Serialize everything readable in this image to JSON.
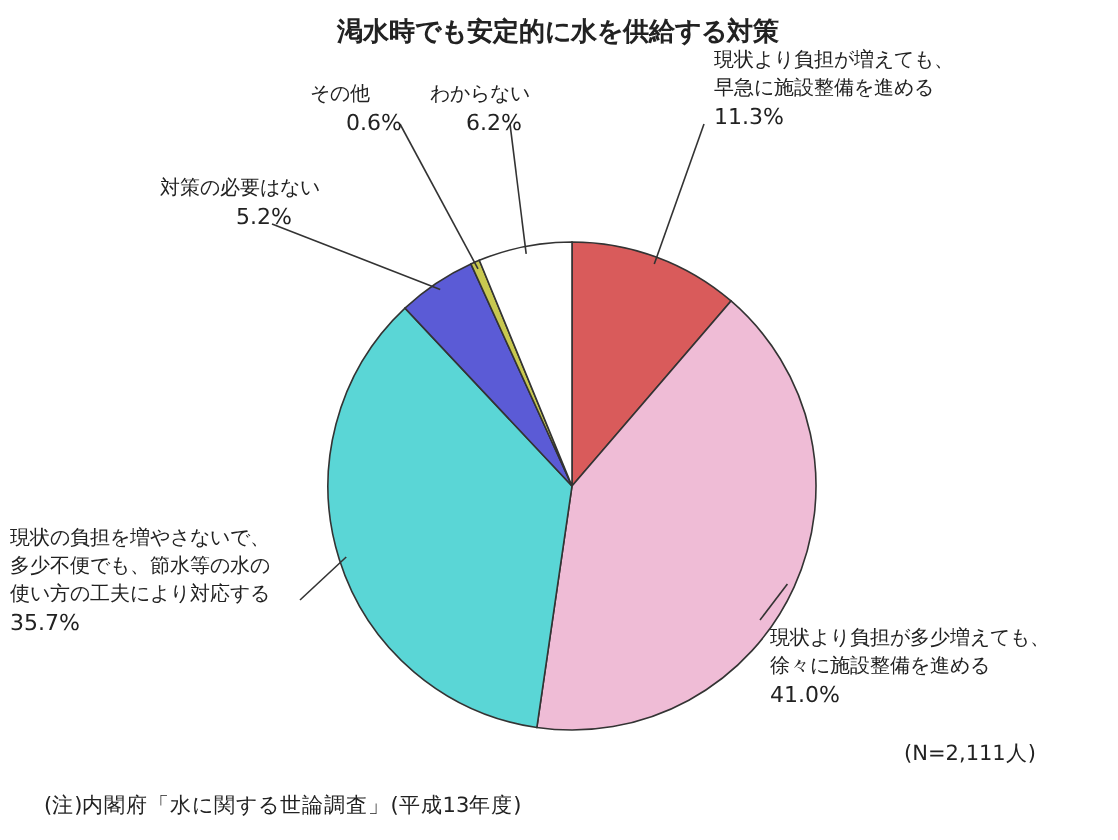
{
  "chart_data": {
    "type": "pie",
    "title": "渇水時でも安定的に水を供給する対策",
    "categories": [
      "現状より負担が増えても、早急に施設整備を進める",
      "現状より負担が多少増えても、徐々に施設整備を進める",
      "現状の負担を増やさないで、多少不便でも、節水等の水の使い方の工夫により対応する",
      "対策の必要はない",
      "その他",
      "わからない"
    ],
    "values": [
      11.3,
      41.0,
      35.7,
      5.2,
      0.6,
      6.2
    ],
    "value_labels": [
      "11.3%",
      "41.0%",
      "35.7%",
      "5.2%",
      "0.6%",
      "6.2%"
    ],
    "colors": [
      "#d95b5b",
      "#efbcd6",
      "#5ad6d6",
      "#5b5bd6",
      "#c8c850",
      "#ffffff"
    ],
    "annotations": [
      "(N=2,111人)",
      "(注)内閣府「水に関する世論調査」(平成13年度)"
    ]
  }
}
